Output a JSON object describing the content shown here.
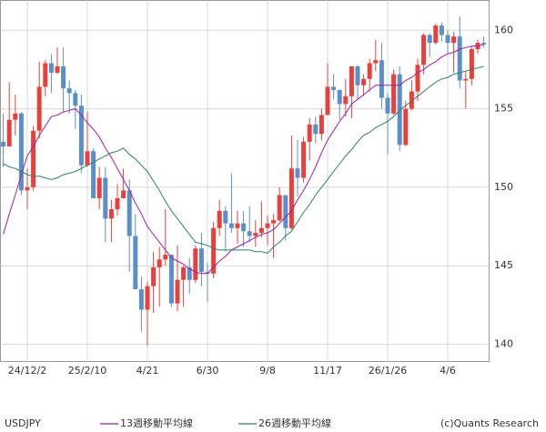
{
  "chart_data": {
    "type": "candlestick",
    "symbol": "USDJPY",
    "credit": "(c)Quants Research",
    "up_color": "#e8413b",
    "down_color": "#5b8fc9",
    "categories": [
      null,
      null,
      null,
      null,
      "24/12/2",
      null,
      null,
      null,
      null,
      null,
      null,
      null,
      null,
      null,
      "25/2/10",
      null,
      null,
      null,
      null,
      null,
      null,
      null,
      null,
      null,
      "4/21",
      null,
      null,
      null,
      null,
      null,
      null,
      null,
      null,
      null,
      "6/30",
      null,
      null,
      null,
      null,
      null,
      null,
      null,
      null,
      null,
      "9/8",
      null,
      null,
      null,
      null,
      null,
      null,
      null,
      null,
      null,
      "11/17",
      null,
      null,
      null,
      null,
      null,
      null,
      null,
      null,
      null,
      "26/1/26",
      null,
      null,
      null,
      null,
      null,
      null,
      null,
      null,
      null,
      "4/6",
      null,
      null,
      null,
      null,
      null,
      null
    ],
    "values": [
      [
        152.9,
        154.7,
        151.3,
        152.6
      ],
      [
        152.6,
        156.7,
        152.6,
        154.3
      ],
      [
        154.3,
        155.9,
        153.3,
        154.7
      ],
      [
        154.7,
        154.8,
        149.5,
        149.8
      ],
      [
        149.8,
        151.2,
        148.6,
        150.0
      ],
      [
        150.0,
        153.9,
        149.8,
        153.6
      ],
      [
        153.6,
        158.0,
        153.1,
        156.4
      ],
      [
        156.4,
        158.1,
        155.8,
        157.9
      ],
      [
        157.9,
        158.5,
        156.0,
        157.3
      ],
      [
        157.3,
        158.9,
        157.2,
        157.7
      ],
      [
        157.7,
        158.9,
        154.8,
        156.3
      ],
      [
        156.3,
        156.8,
        154.7,
        156.0
      ],
      [
        156.0,
        156.2,
        153.7,
        155.2
      ],
      [
        155.2,
        155.9,
        150.9,
        151.4
      ],
      [
        151.4,
        154.8,
        151.3,
        152.3
      ],
      [
        152.3,
        152.5,
        149.3,
        149.3
      ],
      [
        149.3,
        151.3,
        148.6,
        150.6
      ],
      [
        150.6,
        151.3,
        146.5,
        148.0
      ],
      [
        148.0,
        149.2,
        146.5,
        148.6
      ],
      [
        148.6,
        150.2,
        148.2,
        149.3
      ],
      [
        149.3,
        151.2,
        149.3,
        149.8
      ],
      [
        149.8,
        150.5,
        144.6,
        146.9
      ],
      [
        146.9,
        148.3,
        143.5,
        143.5
      ],
      [
        143.5,
        144.3,
        140.8,
        142.2
      ],
      [
        142.2,
        144.0,
        139.9,
        143.7
      ],
      [
        143.7,
        145.9,
        142.0,
        144.9
      ],
      [
        144.9,
        146.2,
        142.4,
        145.4
      ],
      [
        145.4,
        148.6,
        145.0,
        145.7
      ],
      [
        145.7,
        145.7,
        142.4,
        142.6
      ],
      [
        142.6,
        146.3,
        142.1,
        144.1
      ],
      [
        144.1,
        145.0,
        142.4,
        144.9
      ],
      [
        144.9,
        145.5,
        143.2,
        144.1
      ],
      [
        144.1,
        146.3,
        143.9,
        146.1
      ],
      [
        146.1,
        147.1,
        143.7,
        144.6
      ],
      [
        144.6,
        145.2,
        142.7,
        144.5
      ],
      [
        144.5,
        147.8,
        144.2,
        147.4
      ],
      [
        147.4,
        149.2,
        146.9,
        148.5
      ],
      [
        148.5,
        148.8,
        145.9,
        147.7
      ],
      [
        147.7,
        150.9,
        147.1,
        147.4
      ],
      [
        147.4,
        148.5,
        146.4,
        147.7
      ],
      [
        147.7,
        148.5,
        146.2,
        147.2
      ],
      [
        147.2,
        148.8,
        146.5,
        146.9
      ],
      [
        146.9,
        147.9,
        146.2,
        147.1
      ],
      [
        147.1,
        149.1,
        146.8,
        147.4
      ],
      [
        147.4,
        148.2,
        146.3,
        147.7
      ],
      [
        147.7,
        148.3,
        145.5,
        147.9
      ],
      [
        147.9,
        150.0,
        147.8,
        149.5
      ],
      [
        149.5,
        149.5,
        146.6,
        147.4
      ],
      [
        147.4,
        153.3,
        147.3,
        151.2
      ],
      [
        151.2,
        153.0,
        149.4,
        150.6
      ],
      [
        150.6,
        153.2,
        150.3,
        152.9
      ],
      [
        152.9,
        154.4,
        151.7,
        154.0
      ],
      [
        154.0,
        154.5,
        152.8,
        153.4
      ],
      [
        153.4,
        155.0,
        153.0,
        154.6
      ],
      [
        154.6,
        157.9,
        154.6,
        156.4
      ],
      [
        156.4,
        157.2,
        155.6,
        156.2
      ],
      [
        156.2,
        156.2,
        154.3,
        155.3
      ],
      [
        155.3,
        156.9,
        154.5,
        155.8
      ],
      [
        155.8,
        157.7,
        154.4,
        157.7
      ],
      [
        157.7,
        157.8,
        155.6,
        156.5
      ],
      [
        156.5,
        157.2,
        155.8,
        156.9
      ],
      [
        156.9,
        158.2,
        156.1,
        157.9
      ],
      [
        157.9,
        159.4,
        157.4,
        158.1
      ],
      [
        158.1,
        159.2,
        155.0,
        155.7
      ],
      [
        155.7,
        156.0,
        152.1,
        154.7
      ],
      [
        154.7,
        157.5,
        154.6,
        157.2
      ],
      [
        157.2,
        157.7,
        152.3,
        152.7
      ],
      [
        152.7,
        155.5,
        152.6,
        155.0
      ],
      [
        155.0,
        156.8,
        154.9,
        156.1
      ],
      [
        156.1,
        158.2,
        155.5,
        157.8
      ],
      [
        157.8,
        159.8,
        157.2,
        159.7
      ],
      [
        159.7,
        159.8,
        158.3,
        159.2
      ],
      [
        159.2,
        160.4,
        159.1,
        160.3
      ],
      [
        160.3,
        160.5,
        159.3,
        159.7
      ],
      [
        159.7,
        160.0,
        158.5,
        159.2
      ],
      [
        159.2,
        159.9,
        157.3,
        159.6
      ],
      [
        159.6,
        160.9,
        156.3,
        156.8
      ],
      [
        156.8,
        157.4,
        155.0,
        156.9
      ],
      [
        156.9,
        159.0,
        156.5,
        158.8
      ],
      [
        158.8,
        159.4,
        158.5,
        159.2
      ],
      [
        159.2,
        159.6,
        158.9,
        159.1
      ]
    ],
    "series": [
      {
        "name": "13週移動平均線",
        "color": "#a020a0",
        "values": [
          147,
          148.3,
          149.5,
          150.8,
          152,
          152.6,
          153.3,
          153.9,
          154.5,
          154.6,
          154.8,
          154.9,
          155,
          154.6,
          154.1,
          153.7,
          153.2,
          152.5,
          151.9,
          151.2,
          150.5,
          149.8,
          149,
          148.3,
          147.5,
          147,
          146.5,
          146,
          145.5,
          145.3,
          145.1,
          144.8,
          144.6,
          144.5,
          144.5,
          144.9,
          145.3,
          145.6,
          146,
          146.2,
          146.4,
          146.6,
          146.8,
          147,
          147.1,
          147.3,
          147.7,
          148.1,
          148.5,
          149.2,
          149.8,
          150.5,
          151.3,
          152.2,
          153,
          153.6,
          154.2,
          154.7,
          155.3,
          155.6,
          155.9,
          156.2,
          156.5,
          156.5,
          156.5,
          156.5,
          156.5,
          156.8,
          157,
          157.3,
          157.5,
          157.8,
          158,
          158.3,
          158.5,
          158.6,
          158.8,
          158.9,
          159,
          159,
          159.1
        ]
      },
      {
        "name": "26週移動平均線",
        "color": "#2f7f6f",
        "values": [
          151.5,
          151.3,
          151.2,
          151,
          150.8,
          150.7,
          150.7,
          150.6,
          150.5,
          150.6,
          150.8,
          150.9,
          151,
          151.2,
          151.4,
          151.6,
          151.8,
          152,
          152.2,
          152.3,
          152.5,
          152.1,
          151.8,
          151.4,
          151,
          150.4,
          149.8,
          149.1,
          148.5,
          148,
          147.5,
          147,
          146.5,
          146.4,
          146.3,
          146.1,
          146,
          146,
          146,
          146,
          146,
          146,
          145.9,
          145.9,
          145.8,
          146.2,
          146.5,
          146.9,
          147.2,
          147.8,
          148.4,
          148.9,
          149.5,
          150,
          150.5,
          151,
          151.5,
          152,
          152.4,
          152.9,
          153.3,
          153.5,
          153.8,
          154,
          154.2,
          154.5,
          154.9,
          155.2,
          155.5,
          155.8,
          156.1,
          156.4,
          156.7,
          156.9,
          157,
          157.2,
          157.3,
          157.4,
          157.5,
          157.6,
          157.7
        ]
      }
    ],
    "ylim": [
      138.9,
      161.9
    ],
    "yticks": [
      140,
      145,
      150,
      155,
      160
    ],
    "grid": true
  }
}
